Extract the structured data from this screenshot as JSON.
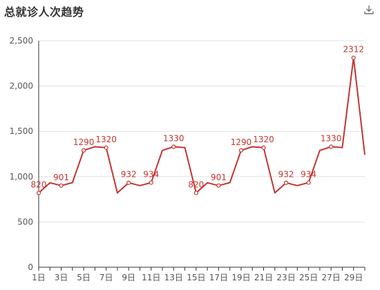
{
  "title": "总就诊人次趋势",
  "toolbox": {
    "icon": "download-icon"
  },
  "colors": {
    "series": "#c23531",
    "axis": "#333333",
    "grid": "#e0e0e0",
    "text": "#555555"
  },
  "chart_data": {
    "type": "line",
    "title": "总就诊人次趋势",
    "x": [
      "1日",
      "2日",
      "3日",
      "4日",
      "5日",
      "6日",
      "7日",
      "8日",
      "9日",
      "10日",
      "11日",
      "12日",
      "13日",
      "14日",
      "15日",
      "16日",
      "17日",
      "18日",
      "19日",
      "20日",
      "21日",
      "22日",
      "23日",
      "24日",
      "25日",
      "26日",
      "27日",
      "28日",
      "29日",
      "30日"
    ],
    "x_tick_labels": [
      "1日",
      "3日",
      "5日",
      "7日",
      "9日",
      "11日",
      "13日",
      "15日",
      "17日",
      "19日",
      "21日",
      "23日",
      "25日",
      "27日",
      "29日"
    ],
    "values": [
      820,
      932,
      901,
      934,
      1290,
      1330,
      1320,
      820,
      932,
      901,
      934,
      1290,
      1330,
      1320,
      820,
      932,
      901,
      934,
      1290,
      1330,
      1320,
      820,
      932,
      901,
      934,
      1290,
      1330,
      1320,
      2312,
      1240
    ],
    "ylim": [
      0,
      2500
    ],
    "y_ticks": [
      0,
      500,
      1000,
      1500,
      2000,
      2500
    ],
    "y_tick_labels": [
      "0",
      "500",
      "1,000",
      "1,500",
      "2,000",
      "2,500"
    ],
    "grid": "horizontal",
    "data_labels": [
      {
        "index": 0,
        "text": "820"
      },
      {
        "index": 2,
        "text": "901"
      },
      {
        "index": 4,
        "text": "1290"
      },
      {
        "index": 6,
        "text": "1320"
      },
      {
        "index": 8,
        "text": "932"
      },
      {
        "index": 10,
        "text": "934"
      },
      {
        "index": 12,
        "text": "1330"
      },
      {
        "index": 14,
        "text": "820"
      },
      {
        "index": 16,
        "text": "901"
      },
      {
        "index": 18,
        "text": "1290"
      },
      {
        "index": 20,
        "text": "1320"
      },
      {
        "index": 22,
        "text": "932"
      },
      {
        "index": 24,
        "text": "934"
      },
      {
        "index": 26,
        "text": "1330"
      },
      {
        "index": 28,
        "text": "2312"
      }
    ]
  }
}
